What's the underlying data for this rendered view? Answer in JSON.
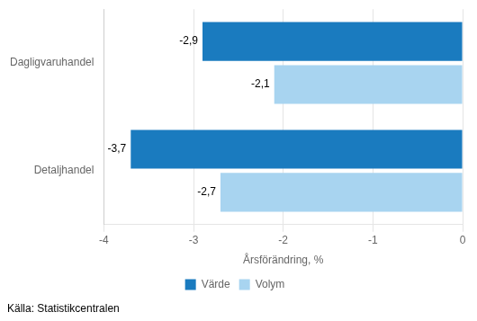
{
  "chart_data": {
    "type": "bar",
    "orientation": "horizontal",
    "categories": [
      "Dagligvaruhandel",
      "Detaljhandel"
    ],
    "series": [
      {
        "name": "Värde",
        "color": "#1a7bbf",
        "values": [
          -2.9,
          -3.7
        ],
        "value_labels": [
          "-2,9",
          "-3,7"
        ]
      },
      {
        "name": "Volym",
        "color": "#a8d4f0",
        "values": [
          -2.1,
          -2.7
        ],
        "value_labels": [
          "-2,1",
          "-2,7"
        ]
      }
    ],
    "xlabel": "Årsförändring, %",
    "xlim": [
      -4,
      0
    ],
    "xticks": [
      -4,
      -3,
      -2,
      -1,
      0
    ],
    "grid": true,
    "legend": "bottom",
    "data_labels": true,
    "annotations": [
      "Källa: Statistikcentralen"
    ]
  }
}
